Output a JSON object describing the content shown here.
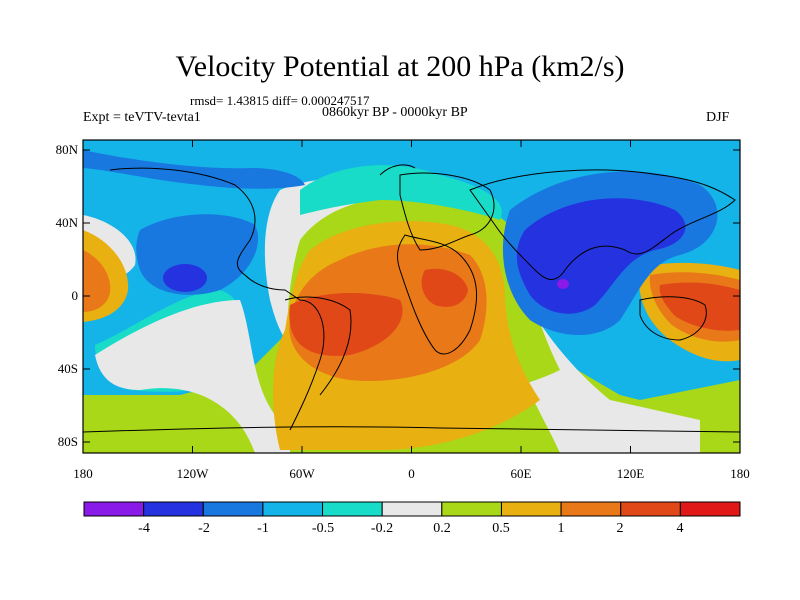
{
  "title": "Velocity Potential at 200 hPa (km2/s)",
  "stats_text": "rmsd= 1.43815 diff= 0.000247517",
  "experiment": "Expt = teVTV-tevta1",
  "period": "0860kyr BP - 0000kyr BP",
  "season": "DJF",
  "y_axis_labels": [
    "80N",
    "40N",
    "0",
    "40S",
    "80S"
  ],
  "x_axis_labels": [
    "180",
    "120W",
    "60W",
    "0",
    "60E",
    "120E",
    "180"
  ],
  "colorbar": {
    "labels": [
      "-4",
      "-2",
      "-1",
      "-0.5",
      "-0.2",
      "0.2",
      "0.5",
      "1",
      "2",
      "4"
    ],
    "colors": [
      "#8a1ae8",
      "#2432e0",
      "#1878e0",
      "#14b4e8",
      "#18dcc8",
      "#e8e8e8",
      "#a8d818",
      "#e8b010",
      "#e87818",
      "#e04818",
      "#e01818"
    ]
  }
}
